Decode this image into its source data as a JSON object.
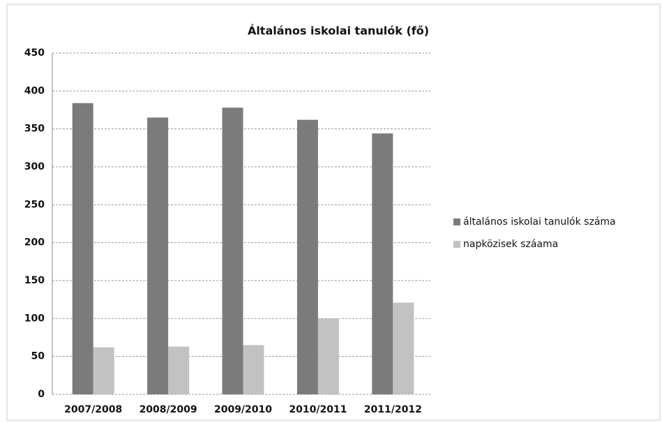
{
  "chart_data": {
    "type": "bar",
    "title": "Általános iskolai tanulók (fő)",
    "categories": [
      "2007/2008",
      "2008/2009",
      "2009/2010",
      "2010/2011",
      "2011/2012"
    ],
    "series": [
      {
        "name": "általános iskolai tanulók száma",
        "color": "#7b7b7b",
        "values": [
          384,
          365,
          378,
          362,
          344
        ]
      },
      {
        "name": "napközisek száama",
        "color": "#c2c2c2",
        "values": [
          62,
          63,
          65,
          100,
          121
        ]
      }
    ],
    "ylim": [
      0,
      450
    ],
    "yticks": [
      0,
      50,
      100,
      150,
      200,
      250,
      300,
      350,
      400,
      450
    ],
    "grid": true,
    "legend": "right"
  }
}
